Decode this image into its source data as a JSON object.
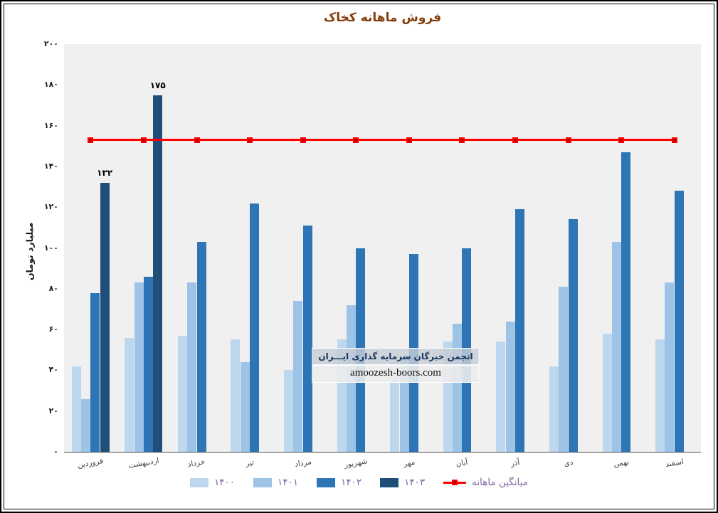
{
  "title": "فروش ماهانه کخاک",
  "y_axis": {
    "title": "میلیارد تومان"
  },
  "chart_data": {
    "type": "bar",
    "title": "فروش ماهانه کخاک",
    "xlabel": "",
    "ylabel": "میلیارد تومان",
    "ylim": [
      0,
      200
    ],
    "grid": false,
    "legend_position": "bottom",
    "plot_background": "#F0F0F0",
    "categories": [
      "فروردین",
      "اردیبهشت",
      "خرداد",
      "تیر",
      "مرداد",
      "شهریور",
      "مهر",
      "آبان",
      "آذر",
      "دی",
      "بهمن",
      "اسفند"
    ],
    "y_ticks": [
      {
        "label": "۰",
        "value": 0
      },
      {
        "label": "۲۰",
        "value": 20
      },
      {
        "label": "۴۰",
        "value": 40
      },
      {
        "label": "۶۰",
        "value": 60
      },
      {
        "label": "۸۰",
        "value": 80
      },
      {
        "label": "۱۰۰",
        "value": 100
      },
      {
        "label": "۱۲۰",
        "value": 120
      },
      {
        "label": "۱۴۰",
        "value": 140
      },
      {
        "label": "۱۶۰",
        "value": 160
      },
      {
        "label": "۱۸۰",
        "value": 180
      },
      {
        "label": "۲۰۰",
        "value": 200
      }
    ],
    "series": [
      {
        "name": "۱۴۰۰",
        "color": "#BDD7EE",
        "values": [
          42,
          56,
          57,
          55,
          40,
          55,
          44,
          54,
          54,
          42,
          58,
          55
        ]
      },
      {
        "name": "۱۴۰۱",
        "color": "#9DC3E6",
        "values": [
          26,
          83,
          83,
          44,
          74,
          72,
          47,
          63,
          64,
          81,
          103,
          83
        ]
      },
      {
        "name": "۱۴۰۲",
        "color": "#2E75B6",
        "values": [
          78,
          86,
          103,
          122,
          111,
          100,
          97,
          100,
          119,
          114,
          147,
          128
        ]
      },
      {
        "name": "۱۴۰۳",
        "color": "#1F4E79",
        "values": [
          132,
          175,
          null,
          null,
          null,
          null,
          null,
          null,
          null,
          null,
          null,
          null
        ],
        "data_labels": [
          "۱۳۲",
          "۱۷۵",
          null,
          null,
          null,
          null,
          null,
          null,
          null,
          null,
          null,
          null
        ]
      }
    ],
    "average_line": {
      "name": "میانگین ماهانه",
      "value": 153,
      "color": "#FF0000",
      "marker_color": "#B00000"
    }
  },
  "legend": {
    "text_color": "#8064A2"
  },
  "watermark": {
    "line1": "انجمن خبرگان سرمایه گذاری ایـــران",
    "line2": "amoozesh-boors.com"
  }
}
